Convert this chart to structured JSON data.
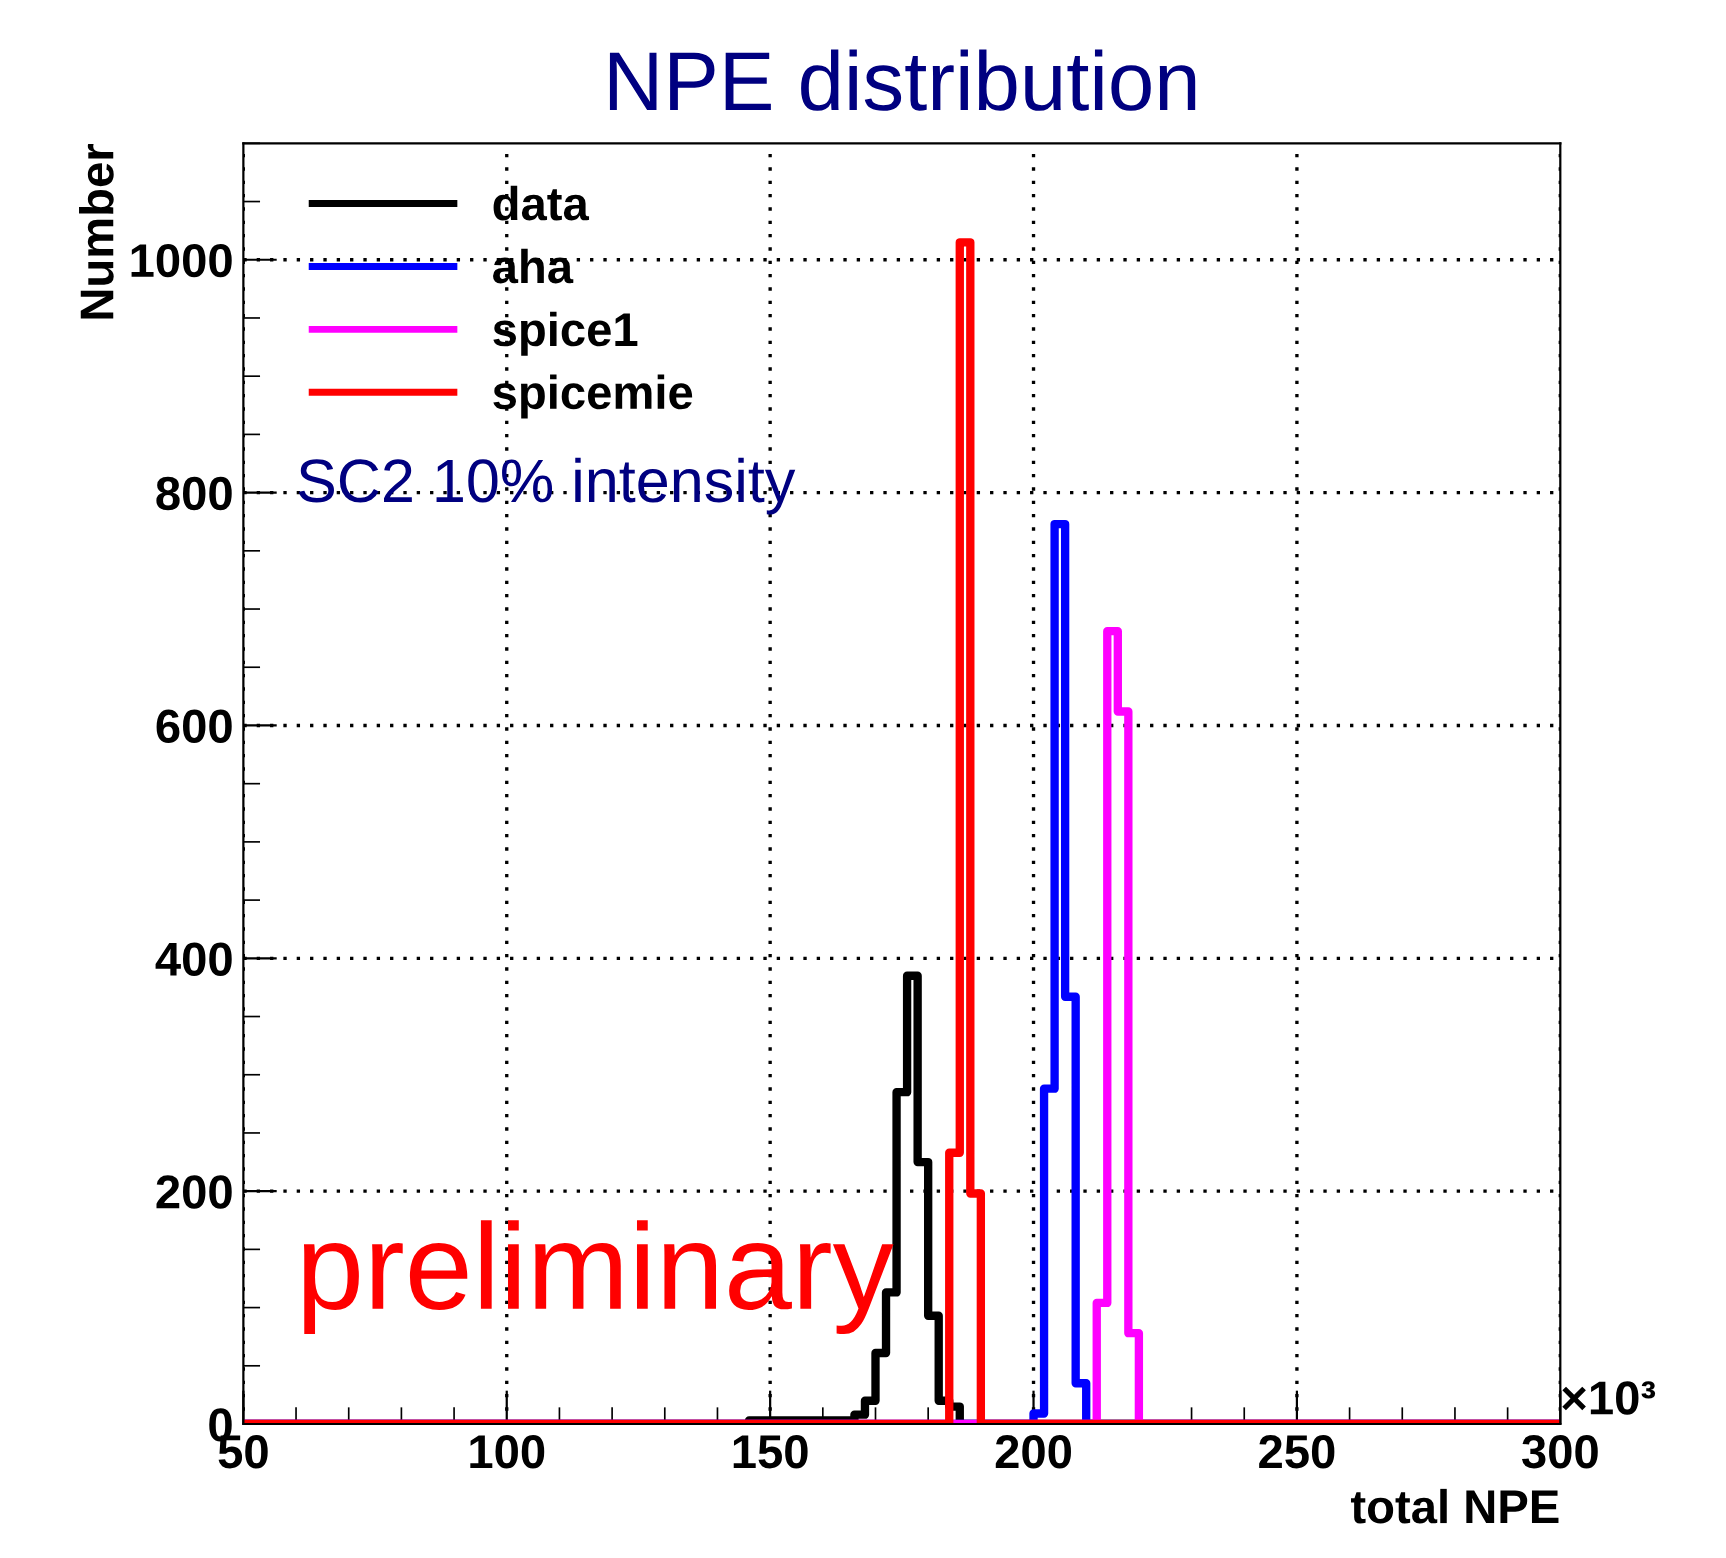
{
  "chart_data": {
    "type": "histogram",
    "title": "NPE distribution",
    "xlabel": "total NPE",
    "ylabel": "Number",
    "bins": [
      50,
      144,
      146,
      148,
      150,
      152,
      154,
      156,
      158,
      160,
      162,
      164,
      166,
      168,
      170,
      172,
      174,
      176,
      178,
      180,
      182,
      184,
      186,
      188,
      190,
      192,
      194,
      196,
      198,
      200,
      202,
      204,
      206,
      208,
      210,
      212,
      214,
      216,
      218,
      220,
      222,
      300
    ],
    "series": [
      {
        "name": "data",
        "color": "#000000",
        "values": [
          0,
          0,
          3,
          3,
          3,
          3,
          3,
          3,
          3,
          3,
          3,
          3,
          8,
          20,
          61,
          113,
          285,
          385,
          225,
          93,
          20,
          15,
          0,
          0,
          0,
          0,
          0,
          0,
          0,
          0,
          0,
          0,
          0,
          0,
          0,
          0,
          0,
          0,
          0,
          0,
          0
        ]
      },
      {
        "name": "aha",
        "color": "#0000ff",
        "values": [
          0,
          0,
          0,
          0,
          0,
          0,
          0,
          0,
          0,
          0,
          0,
          0,
          0,
          0,
          0,
          0,
          0,
          0,
          0,
          0,
          0,
          0,
          0,
          0,
          0,
          0,
          0,
          0,
          0,
          9,
          288,
          773,
          367,
          35,
          0,
          0,
          0,
          0,
          0,
          0,
          0
        ]
      },
      {
        "name": "spice1",
        "color": "#ff00ff",
        "values": [
          0,
          0,
          0,
          0,
          0,
          0,
          0,
          0,
          0,
          0,
          0,
          0,
          0,
          0,
          0,
          0,
          0,
          0,
          0,
          0,
          0,
          0,
          0,
          0,
          0,
          0,
          0,
          0,
          0,
          0,
          0,
          0,
          0,
          0,
          0,
          104,
          681,
          612,
          78,
          0,
          0
        ]
      },
      {
        "name": "spicemie",
        "color": "#ff0000",
        "values": [
          0,
          0,
          0,
          0,
          0,
          0,
          0,
          0,
          0,
          0,
          0,
          0,
          0,
          0,
          0,
          0,
          0,
          0,
          0,
          0,
          0,
          233,
          1015,
          198,
          0,
          0,
          0,
          0,
          0,
          0,
          0,
          0,
          0,
          0,
          0,
          0,
          0,
          0,
          0,
          0,
          0
        ]
      }
    ],
    "xlim": [
      50,
      300
    ],
    "xticks": [
      50,
      100,
      150,
      200,
      250,
      300
    ],
    "ylim": [
      0,
      1100
    ],
    "yticks": [
      0,
      200,
      400,
      600,
      800,
      1000
    ],
    "grid": true,
    "legend": "top left",
    "annotations": [
      "SC2 10% intensity",
      "preliminary",
      "×10³"
    ]
  }
}
